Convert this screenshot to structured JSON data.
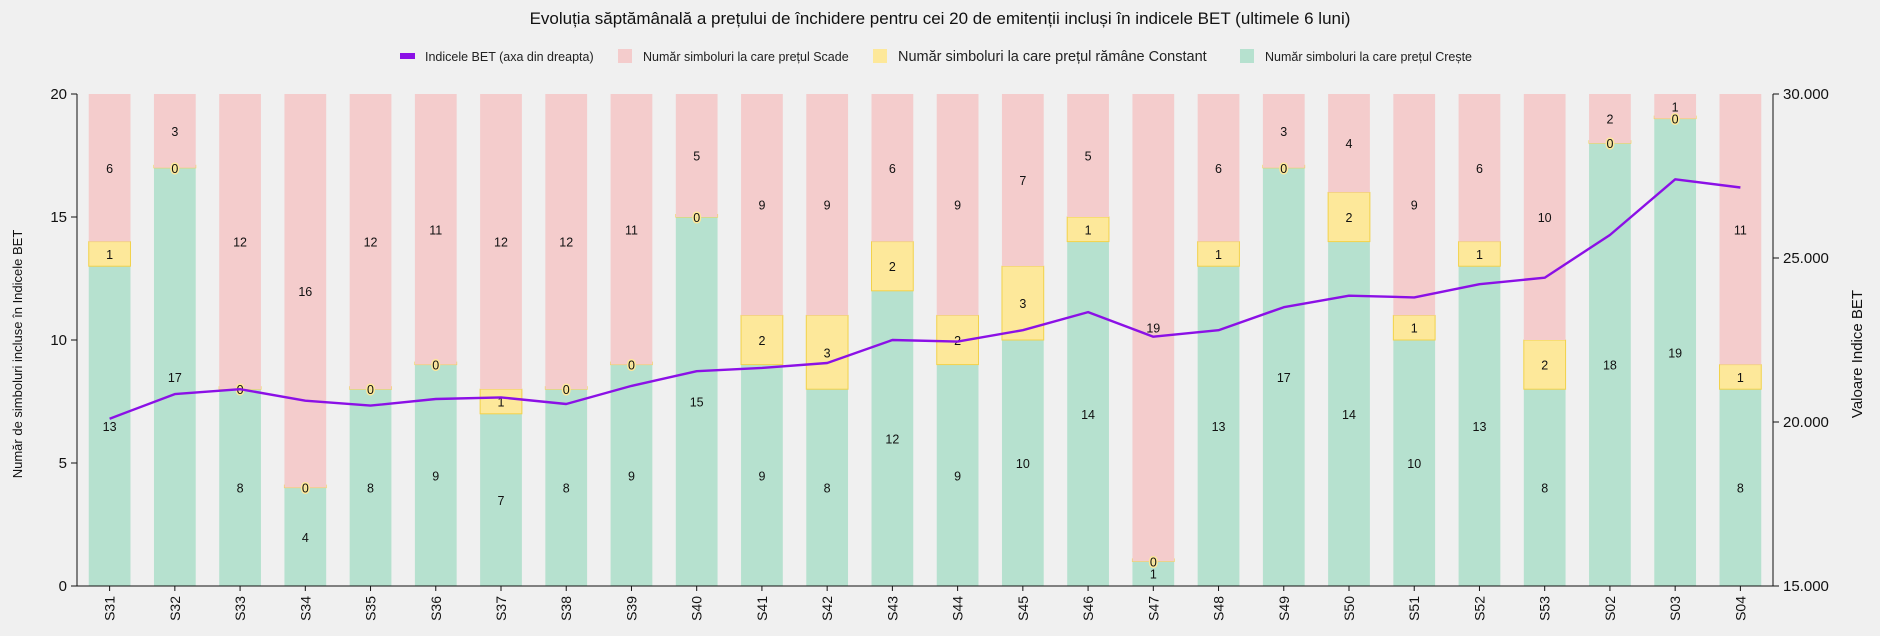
{
  "chart_data": {
    "type": "bar",
    "stacked": true,
    "title": "Evoluția săptămânală a prețului de închidere pentru cei 20 de emitenții incluși în indicele BET (ultimele 6 luni)",
    "ylabel": "Număr de simboluri incluse în Indicele BET",
    "y2label": "Valoare Indice BET",
    "ylim": [
      0,
      20
    ],
    "y2lim": [
      15000,
      30000
    ],
    "yticks": [
      "0",
      "5",
      "10",
      "15",
      "20"
    ],
    "y2ticks": [
      "15.000",
      "20.000",
      "25.000",
      "30.000"
    ],
    "categories": [
      "S31",
      "S32",
      "S33",
      "S34",
      "S35",
      "S36",
      "S37",
      "S38",
      "S39",
      "S40",
      "S41",
      "S42",
      "S43",
      "S44",
      "S45",
      "S46",
      "S47",
      "S48",
      "S49",
      "S50",
      "S51",
      "S52",
      "S53",
      "S02",
      "S03",
      "S04"
    ],
    "series": [
      {
        "name": "Număr simboluri la care prețul Crește",
        "color": "#b6e1cf",
        "values": [
          13,
          17,
          8,
          4,
          8,
          9,
          7,
          8,
          9,
          15,
          9,
          8,
          12,
          9,
          10,
          14,
          1,
          13,
          17,
          14,
          10,
          13,
          8,
          18,
          19,
          8
        ]
      },
      {
        "name": "Număr simboluri la care prețul rămâne Constant",
        "color": "#fde89a",
        "values": [
          1,
          0,
          0,
          0,
          0,
          0,
          1,
          0,
          0,
          0,
          2,
          3,
          2,
          2,
          3,
          1,
          0,
          1,
          0,
          2,
          1,
          1,
          2,
          0,
          0,
          1
        ]
      },
      {
        "name": "Număr simboluri la care prețul Scade",
        "color": "#f4cccc",
        "values": [
          6,
          3,
          12,
          16,
          12,
          11,
          12,
          12,
          11,
          5,
          9,
          9,
          6,
          9,
          7,
          5,
          19,
          6,
          3,
          4,
          9,
          6,
          10,
          2,
          1,
          11
        ]
      }
    ],
    "line": {
      "name": "Indicele BET (axa din dreapta)",
      "color": "#8b10e6",
      "values": [
        20100,
        20850,
        21000,
        20650,
        20500,
        20700,
        20750,
        20550,
        21100,
        21550,
        21650,
        21800,
        22500,
        22450,
        22800,
        23350,
        22600,
        22800,
        23500,
        23850,
        23800,
        24200,
        24400,
        25700,
        27400,
        27150
      ]
    },
    "legend": [
      {
        "label": "Indicele BET (axa din dreapta)",
        "kind": "line",
        "color": "#8b10e6"
      },
      {
        "label": "Număr simboluri la care prețul Scade",
        "kind": "box",
        "color": "#f4cccc"
      },
      {
        "label": "Număr simboluri la care prețul rămâne Constant",
        "kind": "box",
        "color": "#fde89a"
      },
      {
        "label": "Număr simboluri la care prețul Crește",
        "kind": "box",
        "color": "#b6e1cf"
      }
    ],
    "legend_position": "top-center"
  }
}
